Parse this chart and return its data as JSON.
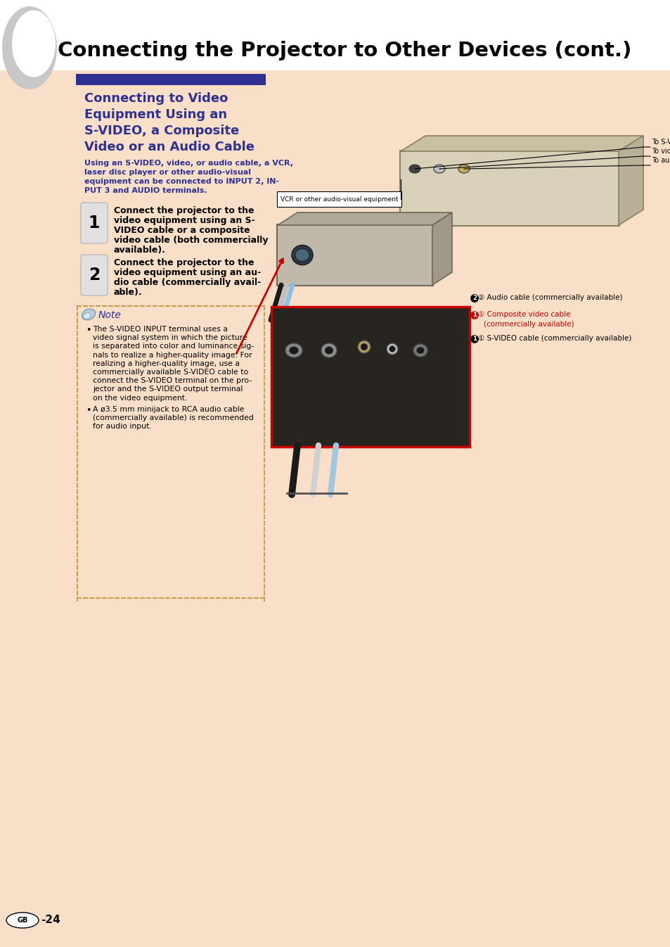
{
  "bg_color": "#ffffff",
  "page_bg": "#f9dfc8",
  "header_bg": "#2e3192",
  "header_title": "Connecting the Projector to Other Devices (cont.)",
  "section_title_lines": [
    "Connecting to Video",
    "Equipment Using an",
    "S-VIDEO, a Composite",
    "Video or an Audio Cable"
  ],
  "section_title_color": "#2e3192",
  "intro_lines": [
    "Using an S-VIDEO, video, or audio cable, a VCR,",
    "laser disc player or other audio-visual",
    "equipment can be connected to INPUT 2, IN-",
    "PUT 3 and AUDIO terminals."
  ],
  "intro_color": "#2e3192",
  "step1_lines": [
    "Connect the projector to the",
    "video equipment using an S-",
    "VIDEO cable or a composite",
    "video cable (both commercially",
    "available)."
  ],
  "step2_lines": [
    "Connect the projector to the",
    "video equipment using an au-",
    "dio cable (commercially avail-",
    "able)."
  ],
  "steps_color": "#000000",
  "note_title": "Note",
  "note_title_color": "#2e3192",
  "note_bullet1_lines": [
    "The S-VIDEO INPUT terminal uses a",
    "video signal system in which the picture",
    "is separated into color and luminance sig-",
    "nals to realize a higher-quality image. For",
    "realizing a higher-quality image, use a",
    "commercially available S-VIDEO cable to",
    "connect the S-VIDEO terminal on the pro-",
    "jector and the S-VIDEO output terminal",
    "on the video equipment."
  ],
  "note_bullet2_lines": [
    "A ø3.5 mm minijack to RCA audio cable",
    "(commercially available) is recommended",
    "for audio input."
  ],
  "note_color": "#000000",
  "page_number": "-24",
  "diag_label_svideo": "To S-VIDEO output terminal",
  "diag_label_video": "To video output terminal",
  "diag_label_audio": "To audio output terminal",
  "diag_label_vcr": "VCR or other audio-visual equipment",
  "diag_label_audio_cable": "② Audio cable (commercially available)",
  "diag_label_composite1": "① Composite video cable",
  "diag_label_composite2": "(commercially available)",
  "diag_label_svideo_cable": "① S-VIDEO cable (commercially available)",
  "diag_color_red": "#cc0000",
  "diag_color_black": "#000000"
}
